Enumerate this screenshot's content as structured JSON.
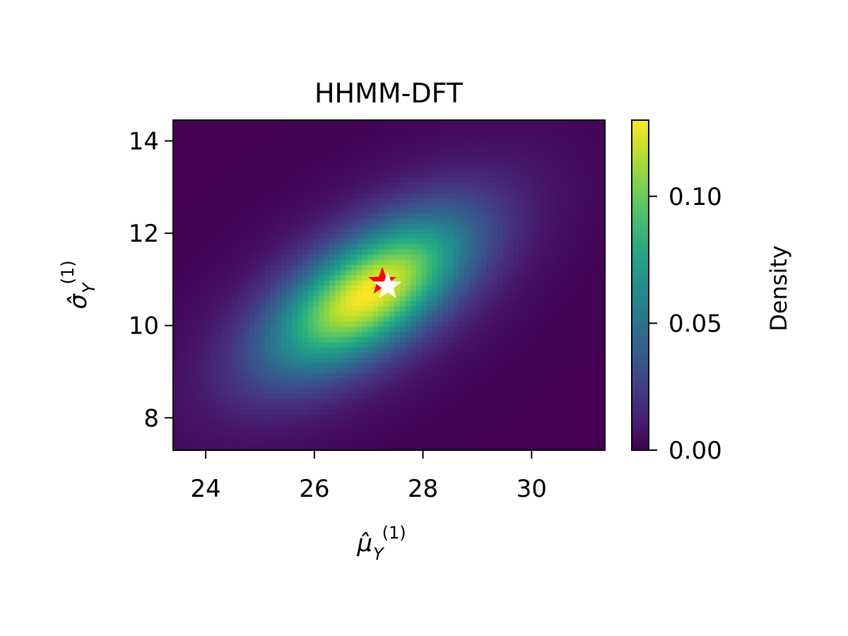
{
  "chart_data": {
    "type": "heatmap",
    "title": "HHMM-DFT",
    "xlabel": {
      "base": "μ̂",
      "sub": "Y",
      "sup": "(1)"
    },
    "ylabel": {
      "base": "σ̂",
      "sub": "Y",
      "sup": "(1)"
    },
    "xlim": [
      23.4,
      31.35
    ],
    "ylim": [
      7.3,
      14.45
    ],
    "x_ticks": [
      24,
      26,
      28,
      30
    ],
    "y_ticks": [
      8,
      10,
      12,
      14
    ],
    "colorbar": {
      "label": "Density",
      "range": [
        0,
        0.13
      ],
      "ticks": [
        0.0,
        0.05,
        0.1
      ],
      "tick_labels": [
        "0.00",
        "0.05",
        "0.10"
      ],
      "colormap": "viridis"
    },
    "density_peak": {
      "x": 27.0,
      "y": 10.7,
      "value": 0.13
    },
    "markers": [
      {
        "name": "red-star",
        "x": 27.25,
        "y": 10.95,
        "color": "#ff0000"
      },
      {
        "name": "white-star",
        "x": 27.35,
        "y": 10.85,
        "color": "#ffffff"
      }
    ],
    "grid": false
  }
}
